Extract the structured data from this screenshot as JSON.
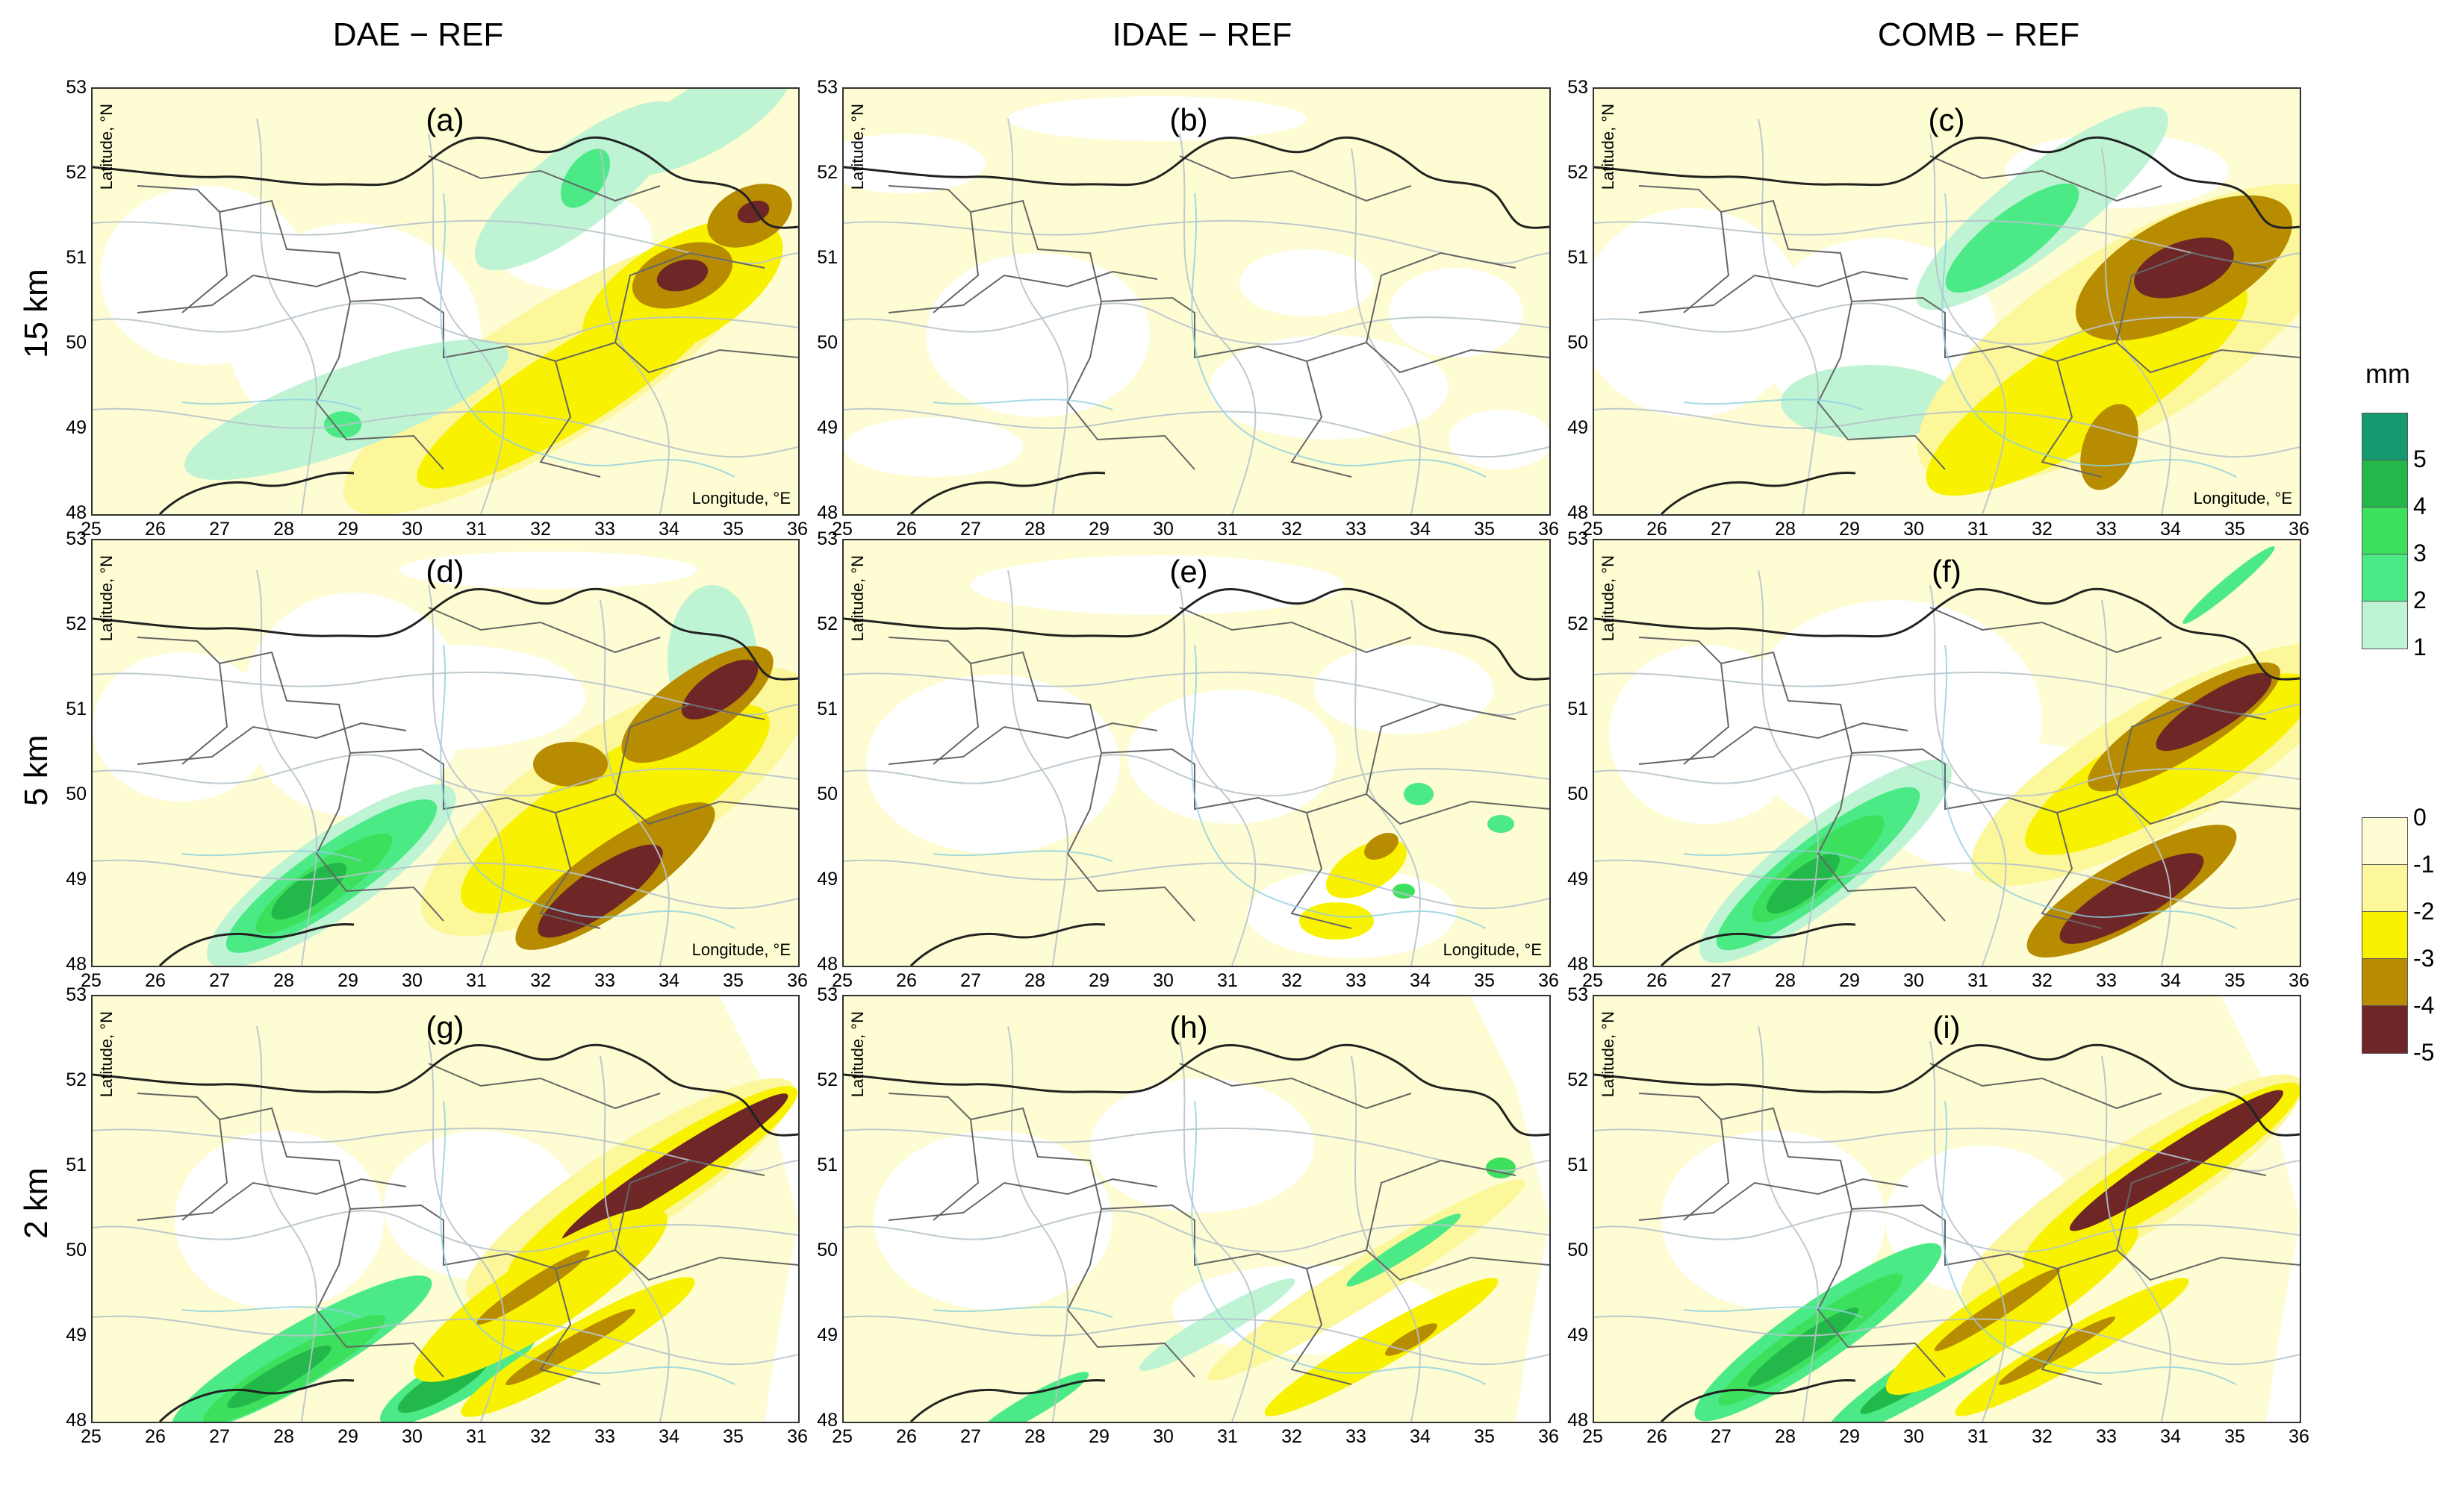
{
  "columns": [
    "DAE − REF",
    "IDAE − REF",
    "COMB − REF"
  ],
  "rows": [
    "15 km",
    "5 km",
    "2 km"
  ],
  "panels": [
    {
      "label": "(a)",
      "lon_title": "Longitude, °E",
      "lat_title": "Latitude, °N"
    },
    {
      "label": "(b)",
      "lon_title": "",
      "lat_title": "Latitude, °N"
    },
    {
      "label": "(c)",
      "lon_title": "Longitude, °E",
      "lat_title": "Latitude, °N"
    },
    {
      "label": "(d)",
      "lon_title": "Longitude, °E",
      "lat_title": "Latitude, °N"
    },
    {
      "label": "(e)",
      "lon_title": "Longitude, °E",
      "lat_title": "Latitude, °N"
    },
    {
      "label": "(f)",
      "lon_title": "",
      "lat_title": "Latitude, °N"
    },
    {
      "label": "(g)",
      "lon_title": "",
      "lat_title": "Latitude, °N"
    },
    {
      "label": "(h)",
      "lon_title": "",
      "lat_title": "Latitude, °N"
    },
    {
      "label": "(i)",
      "lon_title": "",
      "lat_title": "Latitude, °N"
    }
  ],
  "lat_ticks": [
    "53",
    "52",
    "51",
    "50",
    "49",
    "48"
  ],
  "lon_ticks": [
    "25",
    "26",
    "27",
    "28",
    "29",
    "30",
    "31",
    "32",
    "33",
    "34",
    "35",
    "36"
  ],
  "colorbar": {
    "unit": "mm",
    "positive": {
      "labels": [
        "5",
        "4",
        "3",
        "2",
        "1"
      ],
      "colors": [
        "#159970",
        "#22b84a",
        "#3ce05c",
        "#4cea86",
        "#bef4d4"
      ]
    },
    "negative": {
      "labels": [
        "0",
        "-1",
        "-2",
        "-3",
        "-4",
        "-5"
      ],
      "colors": [
        "#fdfcd2",
        "#fcf79a",
        "#f8f200",
        "#b88c00",
        "#6e2626"
      ]
    }
  }
}
